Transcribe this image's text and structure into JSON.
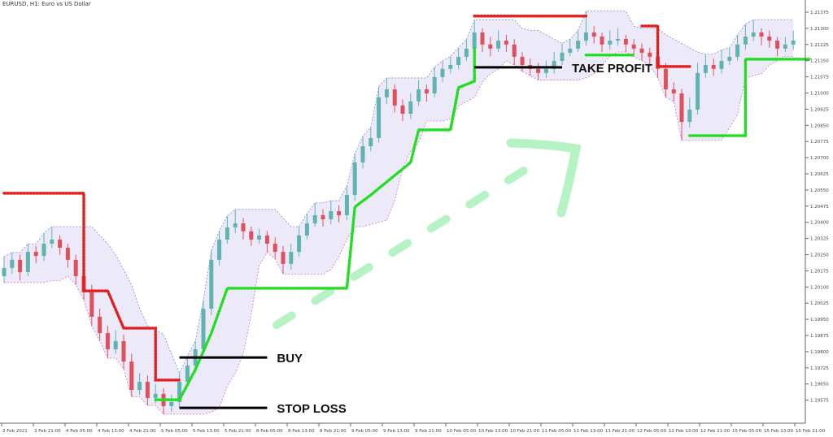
{
  "window_title": "EURUSD, H1: Euro vs US Dollar",
  "chart_data": {
    "type": "candlestick",
    "title": "EURUSD, H1: Euro vs US Dollar",
    "colors": {
      "bull": "#5fb3b0",
      "bear": "#e0505c",
      "resistance": "#e02020",
      "support": "#22dd22",
      "channel_fill": "#eceaf8",
      "channel_edge": "#7a8fd8",
      "arrow": "#b6f3c4"
    },
    "ylim": [
      1.19525,
      1.21425
    ],
    "y_ticks": [
      "1.21375",
      "1.21300",
      "1.21225",
      "1.21150",
      "1.21075",
      "1.21000",
      "1.20925",
      "1.20850",
      "1.20775",
      "1.20700",
      "1.20625",
      "1.20550",
      "1.20475",
      "1.20400",
      "1.20325",
      "1.20250",
      "1.20175",
      "1.20100",
      "1.20025",
      "1.19950",
      "1.19875",
      "1.19800",
      "1.19725",
      "1.19650",
      "1.19575"
    ],
    "x_ticks": [
      "3 Feb 2021",
      "3 Feb 21:00",
      "4 Feb 05:00",
      "4 Feb 13:00",
      "4 Feb 21:00",
      "5 Feb 05:00",
      "5 Feb 13:00",
      "5 Feb 21:00",
      "8 Feb 05:00",
      "8 Feb 13:00",
      "8 Feb 21:00",
      "9 Feb 05:00",
      "9 Feb 13:00",
      "9 Feb 21:00",
      "10 Feb 05:00",
      "10 Feb 13:00",
      "10 Feb 21:00",
      "11 Feb 05:00",
      "11 Feb 13:00",
      "11 Feb 21:00",
      "12 Feb 05:00",
      "12 Feb 13:00",
      "12 Feb 21:00",
      "15 Feb 05:00",
      "15 Feb 13:00",
      "15 Feb 21:00"
    ],
    "candles_ohlc": [
      [
        1.2015,
        1.2024,
        1.2012,
        1.20188
      ],
      [
        1.20188,
        1.2026,
        1.2016,
        1.20226
      ],
      [
        1.20226,
        1.2025,
        1.2013,
        1.20169
      ],
      [
        1.20169,
        1.203,
        1.2015,
        1.20263
      ],
      [
        1.20263,
        1.2029,
        1.2021,
        1.20244
      ],
      [
        1.20244,
        1.2035,
        1.2022,
        1.20301
      ],
      [
        1.20301,
        1.2038,
        1.2028,
        1.2032
      ],
      [
        1.2032,
        1.2034,
        1.2025,
        1.20282
      ],
      [
        1.20282,
        1.203,
        1.2019,
        1.20226
      ],
      [
        1.20226,
        1.2025,
        1.2011,
        1.2015
      ],
      [
        1.2015,
        1.2018,
        1.2004,
        1.20075
      ],
      [
        1.20075,
        1.2011,
        1.1992,
        1.19962
      ],
      [
        1.19962,
        1.2,
        1.1985,
        1.19886
      ],
      [
        1.19886,
        1.1992,
        1.1977,
        1.19811
      ],
      [
        1.19811,
        1.199,
        1.1979,
        1.19849
      ],
      [
        1.19849,
        1.1988,
        1.1972,
        1.19754
      ],
      [
        1.19754,
        1.1979,
        1.1959,
        1.19622
      ],
      [
        1.19622,
        1.197,
        1.196,
        1.1966
      ],
      [
        1.1966,
        1.1969,
        1.1955,
        1.19585
      ],
      [
        1.19585,
        1.1965,
        1.1956,
        1.19604
      ],
      [
        1.19604,
        1.1963,
        1.1951,
        1.19547
      ],
      [
        1.19547,
        1.196,
        1.1952,
        1.19566
      ],
      [
        1.19566,
        1.197,
        1.1954,
        1.1966
      ],
      [
        1.1966,
        1.1978,
        1.1964,
        1.19735
      ],
      [
        1.19735,
        1.1985,
        1.197,
        1.19811
      ],
      [
        1.19811,
        1.2004,
        1.1979,
        1.19999
      ],
      [
        1.19999,
        1.2027,
        1.1997,
        1.20226
      ],
      [
        1.20226,
        1.2036,
        1.202,
        1.2032
      ],
      [
        1.2032,
        1.2043,
        1.203,
        1.20376
      ],
      [
        1.20376,
        1.2046,
        1.2035,
        1.20395
      ],
      [
        1.20395,
        1.2042,
        1.2032,
        1.20358
      ],
      [
        1.20358,
        1.2038,
        1.2029,
        1.2032
      ],
      [
        1.2032,
        1.2037,
        1.203,
        1.20339
      ],
      [
        1.20339,
        1.2036,
        1.2026,
        1.20301
      ],
      [
        1.20301,
        1.2033,
        1.2023,
        1.20263
      ],
      [
        1.20263,
        1.2029,
        1.2016,
        1.20207
      ],
      [
        1.20207,
        1.203,
        1.2018,
        1.20263
      ],
      [
        1.20263,
        1.2038,
        1.2024,
        1.20339
      ],
      [
        1.20339,
        1.2044,
        1.2032,
        1.20395
      ],
      [
        1.20395,
        1.2049,
        1.2038,
        1.20433
      ],
      [
        1.20433,
        1.2046,
        1.2038,
        1.20414
      ],
      [
        1.20414,
        1.205,
        1.2039,
        1.20452
      ],
      [
        1.20452,
        1.2048,
        1.204,
        1.20433
      ],
      [
        1.20433,
        1.2057,
        1.2041,
        1.20527
      ],
      [
        1.20527,
        1.2072,
        1.205,
        1.20678
      ],
      [
        1.20678,
        1.208,
        1.2065,
        1.20753
      ],
      [
        1.20753,
        1.2084,
        1.2073,
        1.20791
      ],
      [
        1.20791,
        1.2103,
        1.2077,
        1.2098
      ],
      [
        1.2098,
        1.2107,
        1.2095,
        1.21017
      ],
      [
        1.21017,
        1.2104,
        1.2091,
        1.20942
      ],
      [
        1.20942,
        1.2097,
        1.2087,
        1.20904
      ],
      [
        1.20904,
        1.21,
        1.2088,
        1.20961
      ],
      [
        1.20961,
        1.2106,
        1.2094,
        1.21017
      ],
      [
        1.21017,
        1.2104,
        1.2096,
        1.20998
      ],
      [
        1.20998,
        1.2112,
        1.2098,
        1.21074
      ],
      [
        1.21074,
        1.2115,
        1.2105,
        1.21112
      ],
      [
        1.21112,
        1.2117,
        1.2109,
        1.2113
      ],
      [
        1.2113,
        1.2121,
        1.2111,
        1.21168
      ],
      [
        1.21168,
        1.2125,
        1.2115,
        1.21206
      ],
      [
        1.21206,
        1.2134,
        1.2119,
        1.21281
      ],
      [
        1.21281,
        1.213,
        1.2119,
        1.21225
      ],
      [
        1.21225,
        1.2126,
        1.2117,
        1.21206
      ],
      [
        1.21206,
        1.2129,
        1.2119,
        1.21243
      ],
      [
        1.21243,
        1.2127,
        1.2119,
        1.21225
      ],
      [
        1.21225,
        1.2125,
        1.2113,
        1.21168
      ],
      [
        1.21168,
        1.2119,
        1.211,
        1.2113
      ],
      [
        1.2113,
        1.2116,
        1.2108,
        1.21112
      ],
      [
        1.21112,
        1.2114,
        1.2106,
        1.21093
      ],
      [
        1.21093,
        1.2115,
        1.2107,
        1.21112
      ],
      [
        1.21112,
        1.2119,
        1.2109,
        1.21149
      ],
      [
        1.21149,
        1.2123,
        1.2113,
        1.21187
      ],
      [
        1.21187,
        1.2125,
        1.2117,
        1.21206
      ],
      [
        1.21206,
        1.2129,
        1.2119,
        1.21243
      ],
      [
        1.21243,
        1.2138,
        1.2122,
        1.21281
      ],
      [
        1.21281,
        1.2131,
        1.2123,
        1.21262
      ],
      [
        1.21262,
        1.2128,
        1.2119,
        1.21225
      ],
      [
        1.21225,
        1.2129,
        1.212,
        1.21243
      ],
      [
        1.21243,
        1.213,
        1.2122,
        1.21251
      ],
      [
        1.21251,
        1.2127,
        1.2119,
        1.21225
      ],
      [
        1.21225,
        1.2125,
        1.2117,
        1.21206
      ],
      [
        1.21206,
        1.2123,
        1.2115,
        1.21187
      ],
      [
        1.21187,
        1.2121,
        1.2113,
        1.21168
      ],
      [
        1.21168,
        1.2119,
        1.2107,
        1.21112
      ],
      [
        1.21112,
        1.2114,
        1.2098,
        1.21017
      ],
      [
        1.21017,
        1.2105,
        1.2096,
        1.20998
      ],
      [
        1.20998,
        1.2102,
        1.2078,
        1.20866
      ],
      [
        1.20866,
        1.2098,
        1.2084,
        1.20923
      ],
      [
        1.20923,
        1.2114,
        1.209,
        1.21093
      ],
      [
        1.21093,
        1.2118,
        1.2107,
        1.2113
      ],
      [
        1.2113,
        1.2116,
        1.2108,
        1.21112
      ],
      [
        1.21112,
        1.212,
        1.2109,
        1.21149
      ],
      [
        1.21149,
        1.2121,
        1.2113,
        1.21168
      ],
      [
        1.21168,
        1.2127,
        1.2115,
        1.21225
      ],
      [
        1.21225,
        1.2132,
        1.212,
        1.21262
      ],
      [
        1.21262,
        1.2134,
        1.2124,
        1.21281
      ],
      [
        1.21281,
        1.213,
        1.2122,
        1.21262
      ],
      [
        1.21262,
        1.2129,
        1.2121,
        1.21243
      ],
      [
        1.21243,
        1.2126,
        1.2117,
        1.21206
      ],
      [
        1.21206,
        1.2126,
        1.2119,
        1.21225
      ],
      [
        1.21225,
        1.2129,
        1.212,
        1.21243
      ]
    ],
    "resistance_segments": [
      [
        [
          0,
          1.20535
        ],
        [
          10,
          1.20535
        ],
        [
          10,
          1.20082
        ],
        [
          13,
          1.20082
        ],
        [
          15,
          1.19909
        ],
        [
          19,
          1.19909
        ],
        [
          19,
          1.19668
        ],
        [
          22,
          1.19668
        ]
      ],
      [
        [
          59,
          1.21357
        ],
        [
          73,
          1.21357
        ]
      ],
      [
        [
          80,
          1.21311
        ],
        [
          82,
          1.21311
        ],
        [
          82,
          1.21123
        ],
        [
          86,
          1.21123
        ]
      ]
    ],
    "support_segments": [
      [
        [
          19,
          1.19577
        ],
        [
          22,
          1.19577
        ],
        [
          24,
          1.19717
        ],
        [
          26,
          1.19886
        ],
        [
          28,
          1.20094
        ],
        [
          43,
          1.20094
        ],
        [
          44,
          1.20471
        ],
        [
          46,
          1.20527
        ],
        [
          51,
          1.20678
        ],
        [
          52,
          1.20829
        ],
        [
          56,
          1.20829
        ],
        [
          57,
          1.21025
        ],
        [
          59,
          1.21055
        ],
        [
          59,
          1.21206
        ]
      ],
      [
        [
          73,
          1.21176
        ],
        [
          79,
          1.21176
        ]
      ],
      [
        [
          86,
          1.20802
        ],
        [
          93,
          1.20802
        ],
        [
          93,
          1.21157
        ],
        [
          101,
          1.21157
        ]
      ]
    ],
    "annotations": [
      {
        "label": "BUY",
        "price": 1.19773,
        "from": 22,
        "to": 33
      },
      {
        "label": "STOP LOSS",
        "price": 1.19539,
        "from": 22,
        "to": 33
      },
      {
        "label": "TAKE PROFIT",
        "price": 1.21119,
        "from": 59,
        "to": 70
      }
    ]
  }
}
